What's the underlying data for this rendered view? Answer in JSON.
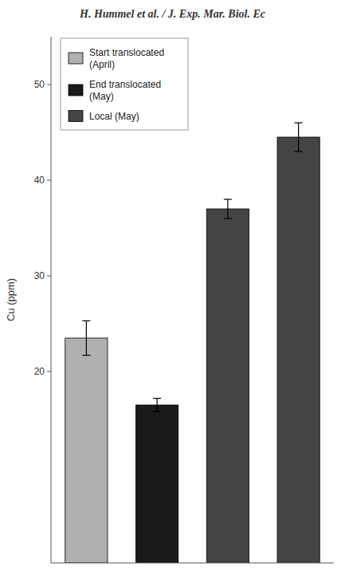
{
  "chart_data": {
    "type": "bar",
    "title": "H. Hummel et al. / J. Exp. Mar. Biol. Ec",
    "ylabel": "Cu (ppm)",
    "categories": [
      null,
      null,
      null,
      null
    ],
    "series": [
      {
        "name": "Start translocated\n(April)",
        "color": "#b0b0b0",
        "values": [
          23.5,
          null,
          null,
          null
        ],
        "errors": [
          1.8,
          null,
          null,
          null
        ]
      },
      {
        "name": "End translocated\n(May)",
        "color": "#1a1a1a",
        "values": [
          null,
          16.5,
          null,
          null
        ],
        "errors": [
          null,
          0.7,
          null,
          null
        ]
      },
      {
        "name": "Local (May)",
        "color": "#444444",
        "values": [
          null,
          null,
          37.0,
          44.5
        ],
        "errors": [
          null,
          null,
          1.0,
          1.5
        ]
      }
    ],
    "ylim": [
      0,
      55
    ],
    "yticks": [
      20,
      30,
      40,
      50
    ],
    "grid": false,
    "legend": "upper left",
    "tick_labels": "y"
  }
}
